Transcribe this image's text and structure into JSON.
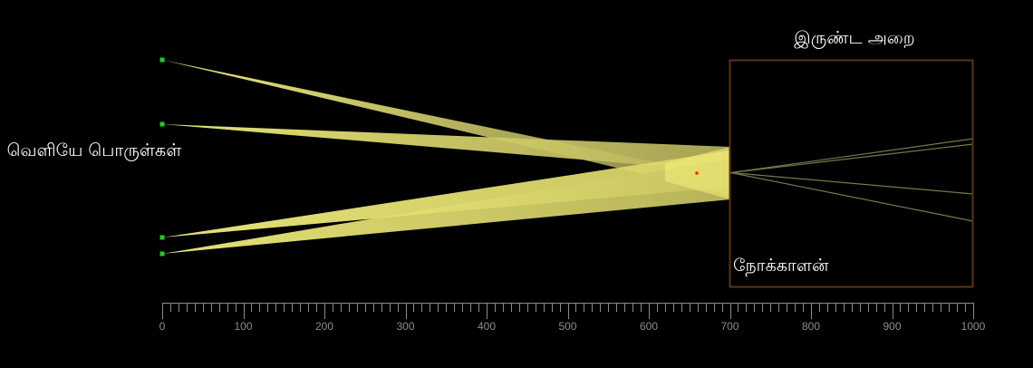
{
  "labels": {
    "objects_outside": "வெளியே பொருள்கள்",
    "dark_room": "இருண்ட அறை",
    "observer": "நோக்காளன்"
  },
  "scale": {
    "min": 0,
    "max": 1000,
    "major_step": 100,
    "minor_step": 10,
    "tick_labels": [
      "0",
      "100",
      "200",
      "300",
      "400",
      "500",
      "600",
      "700",
      "800",
      "900",
      "1000"
    ]
  },
  "diagram": {
    "pinhole_x": 700,
    "lens_point_x": 660,
    "object_x": 0,
    "room_right_x": 1000,
    "colors": {
      "beam": "#f5f07a",
      "object_point": "#22cc22",
      "lens_point": "#ff2200",
      "room_border": "#5a3418",
      "projected_ray": "#77774a",
      "axis": "#8c8c8c"
    }
  }
}
